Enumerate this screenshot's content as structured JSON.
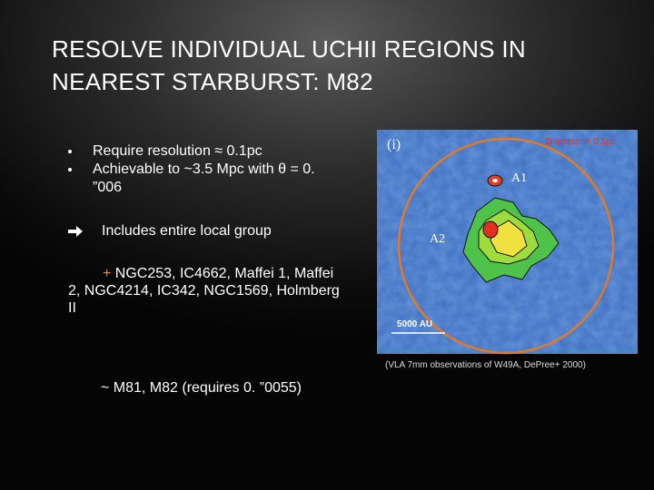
{
  "slide": {
    "title": "RESOLVE INDIVIDUAL UCHII REGIONS IN NEAREST STARBURST: M82",
    "bullets": [
      "Require resolution ≈ 0.1pc",
      "Achievable to ~3.5 Mpc with θ = 0. ”006"
    ],
    "arrow_text": "Includes entire local group",
    "plus_sign": "+",
    "plus_text": "NGC253, IC4662, Maffei 1, Maffei 2,      NGC4214, IC342, NGC1569, Holmberg II",
    "tilde_text": "~ M81, M82 (requires 0. ”0055)",
    "figure": {
      "panel_label": "(i)",
      "diameter_label": "Diameter = 0.1pc",
      "source_a1": "A1",
      "source_a2": "A2",
      "scale_label": "5000 AU",
      "caption": "(VLA 7mm observations of W49A, DePree+ 2000)"
    }
  }
}
